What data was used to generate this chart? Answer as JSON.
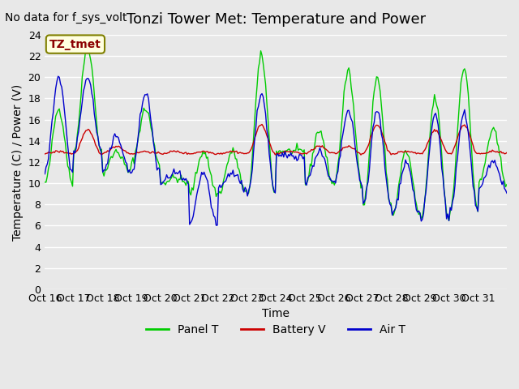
{
  "title": "Tonzi Tower Met: Temperature and Power",
  "top_left_text": "No data for f_sys_volt",
  "legend_label_text": "TZ_tmet",
  "xlabel": "Time",
  "ylabel": "Temperature (C) / Power (V)",
  "ylim": [
    0,
    24
  ],
  "yticks": [
    0,
    2,
    4,
    6,
    8,
    10,
    12,
    14,
    16,
    18,
    20,
    22,
    24
  ],
  "xtick_labels": [
    "Oct 16",
    "Oct 17",
    "Oct 18",
    "Oct 19",
    "Oct 20",
    "Oct 21",
    "Oct 22",
    "Oct 23",
    "Oct 24",
    "Oct 25",
    "Oct 26",
    "Oct 27",
    "Oct 28",
    "Oct 29",
    "Oct 30",
    "Oct 31",
    ""
  ],
  "background_color": "#e8e8e8",
  "plot_bg_color": "#e8e8e8",
  "grid_color": "#ffffff",
  "line_colors": {
    "panel": "#00cc00",
    "battery": "#cc0000",
    "air": "#0000cc"
  },
  "legend_entries": [
    "Panel T",
    "Battery V",
    "Air T"
  ],
  "title_fontsize": 13,
  "axis_fontsize": 10,
  "tick_fontsize": 9
}
